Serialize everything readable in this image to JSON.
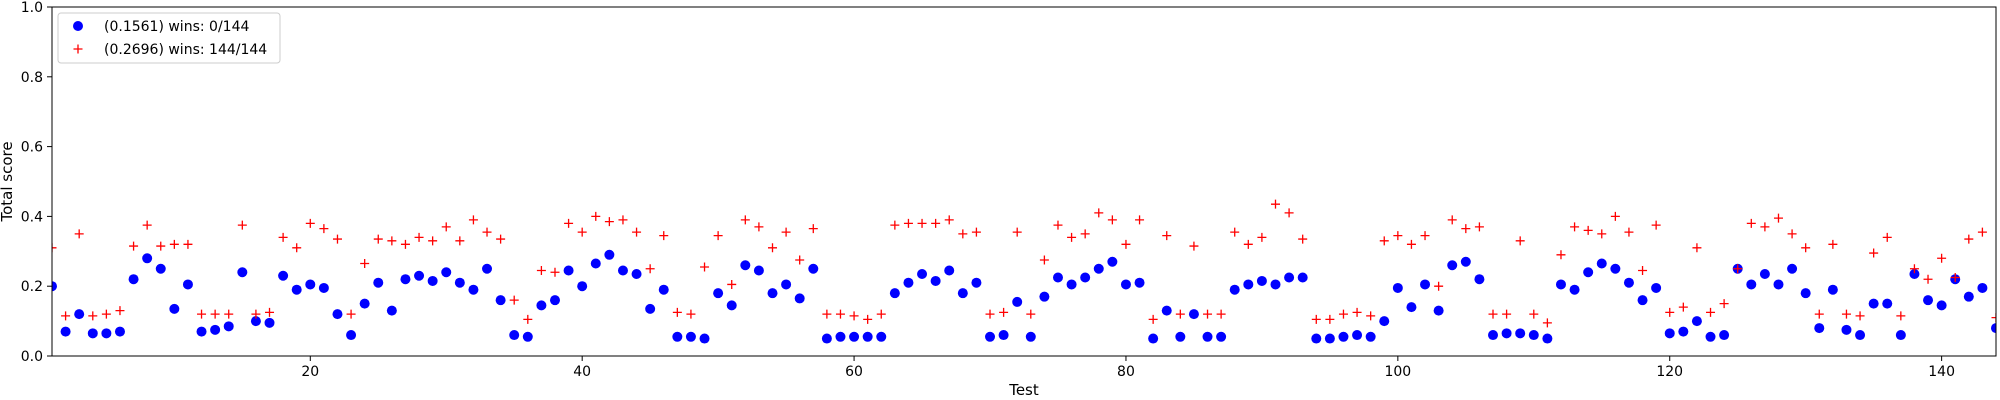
{
  "chart_data": {
    "type": "scatter",
    "xlabel": "Test",
    "ylabel": "Total score",
    "xlim": [
      1,
      144
    ],
    "ylim": [
      0.0,
      1.0
    ],
    "grid": false,
    "legend_position": "top-left",
    "x_ticks": [
      20,
      40,
      60,
      80,
      100,
      120,
      140
    ],
    "x_tick_labels": [
      "20",
      "40",
      "60",
      "80",
      "100",
      "120",
      "140"
    ],
    "y_ticks": [
      0.0,
      0.2,
      0.4,
      0.6,
      0.8,
      1.0
    ],
    "y_tick_labels": [
      "0.0",
      "0.2",
      "0.4",
      "0.6",
      "0.8",
      "1.0"
    ],
    "x": [
      1,
      2,
      3,
      4,
      5,
      6,
      7,
      8,
      9,
      10,
      11,
      12,
      13,
      14,
      15,
      16,
      17,
      18,
      19,
      20,
      21,
      22,
      23,
      24,
      25,
      26,
      27,
      28,
      29,
      30,
      31,
      32,
      33,
      34,
      35,
      36,
      37,
      38,
      39,
      40,
      41,
      42,
      43,
      44,
      45,
      46,
      47,
      48,
      49,
      50,
      51,
      52,
      53,
      54,
      55,
      56,
      57,
      58,
      59,
      60,
      61,
      62,
      63,
      64,
      65,
      66,
      67,
      68,
      69,
      70,
      71,
      72,
      73,
      74,
      75,
      76,
      77,
      78,
      79,
      80,
      81,
      82,
      83,
      84,
      85,
      86,
      87,
      88,
      89,
      90,
      91,
      92,
      93,
      94,
      95,
      96,
      97,
      98,
      99,
      100,
      101,
      102,
      103,
      104,
      105,
      106,
      107,
      108,
      109,
      110,
      111,
      112,
      113,
      114,
      115,
      116,
      117,
      118,
      119,
      120,
      121,
      122,
      123,
      124,
      125,
      126,
      127,
      128,
      129,
      130,
      131,
      132,
      133,
      134,
      135,
      136,
      137,
      138,
      139,
      140,
      141,
      142,
      143,
      144
    ],
    "series": [
      {
        "name": "(0.1561) wins: 0/144",
        "marker": "circle",
        "color": "#0000ff",
        "values": [
          0.2,
          0.07,
          0.12,
          0.065,
          0.065,
          0.07,
          0.22,
          0.28,
          0.25,
          0.135,
          0.205,
          0.07,
          0.075,
          0.085,
          0.24,
          0.1,
          0.095,
          0.23,
          0.19,
          0.205,
          0.195,
          0.12,
          0.06,
          0.15,
          0.21,
          0.13,
          0.22,
          0.23,
          0.215,
          0.24,
          0.21,
          0.19,
          0.25,
          0.16,
          0.06,
          0.055,
          0.145,
          0.16,
          0.245,
          0.2,
          0.265,
          0.29,
          0.245,
          0.235,
          0.135,
          0.19,
          0.055,
          0.055,
          0.05,
          0.18,
          0.145,
          0.26,
          0.245,
          0.18,
          0.205,
          0.165,
          0.25,
          0.05,
          0.055,
          0.055,
          0.055,
          0.055,
          0.18,
          0.21,
          0.235,
          0.215,
          0.245,
          0.18,
          0.21,
          0.055,
          0.06,
          0.155,
          0.055,
          0.17,
          0.225,
          0.205,
          0.225,
          0.25,
          0.27,
          0.205,
          0.21,
          0.05,
          0.13,
          0.055,
          0.12,
          0.055,
          0.055,
          0.19,
          0.205,
          0.215,
          0.205,
          0.225,
          0.225,
          0.05,
          0.05,
          0.055,
          0.06,
          0.055,
          0.1,
          0.195,
          0.14,
          0.205,
          0.13,
          0.26,
          0.27,
          0.22,
          0.06,
          0.065,
          0.065,
          0.06,
          0.05,
          0.205,
          0.19,
          0.24,
          0.265,
          0.25,
          0.21,
          0.16,
          0.195,
          0.065,
          0.07,
          0.1,
          0.055,
          0.06,
          0.25,
          0.205,
          0.235,
          0.205,
          0.25,
          0.18,
          0.08,
          0.19,
          0.075,
          0.06,
          0.15,
          0.15,
          0.06,
          0.235,
          0.16,
          0.145,
          0.22,
          0.17,
          0.195,
          0.08
        ]
      },
      {
        "name": "(0.2696) wins: 144/144",
        "marker": "plus",
        "color": "#ff0000",
        "values": [
          0.31,
          0.115,
          0.35,
          0.115,
          0.12,
          0.13,
          0.315,
          0.375,
          0.315,
          0.32,
          0.32,
          0.12,
          0.12,
          0.12,
          0.375,
          0.12,
          0.125,
          0.34,
          0.31,
          0.38,
          0.365,
          0.335,
          0.12,
          0.265,
          0.335,
          0.33,
          0.32,
          0.34,
          0.33,
          0.37,
          0.33,
          0.39,
          0.355,
          0.335,
          0.16,
          0.105,
          0.245,
          0.24,
          0.38,
          0.355,
          0.4,
          0.385,
          0.39,
          0.355,
          0.25,
          0.345,
          0.125,
          0.12,
          0.255,
          0.345,
          0.205,
          0.39,
          0.37,
          0.31,
          0.355,
          0.275,
          0.365,
          0.12,
          0.12,
          0.115,
          0.105,
          0.12,
          0.375,
          0.38,
          0.38,
          0.38,
          0.39,
          0.35,
          0.355,
          0.12,
          0.125,
          0.355,
          0.12,
          0.275,
          0.375,
          0.34,
          0.35,
          0.41,
          0.39,
          0.32,
          0.39,
          0.105,
          0.345,
          0.12,
          0.315,
          0.12,
          0.12,
          0.355,
          0.32,
          0.34,
          0.435,
          0.41,
          0.335,
          0.105,
          0.105,
          0.12,
          0.125,
          0.115,
          0.33,
          0.345,
          0.32,
          0.345,
          0.2,
          0.39,
          0.365,
          0.37,
          0.12,
          0.12,
          0.33,
          0.12,
          0.095,
          0.29,
          0.37,
          0.36,
          0.35,
          0.4,
          0.355,
          0.245,
          0.375,
          0.125,
          0.14,
          0.31,
          0.125,
          0.15,
          0.25,
          0.38,
          0.37,
          0.395,
          0.35,
          0.31,
          0.12,
          0.32,
          0.12,
          0.115,
          0.295,
          0.34,
          0.115,
          0.25,
          0.22,
          0.28,
          0.225,
          0.335,
          0.355,
          0.11
        ]
      }
    ]
  }
}
